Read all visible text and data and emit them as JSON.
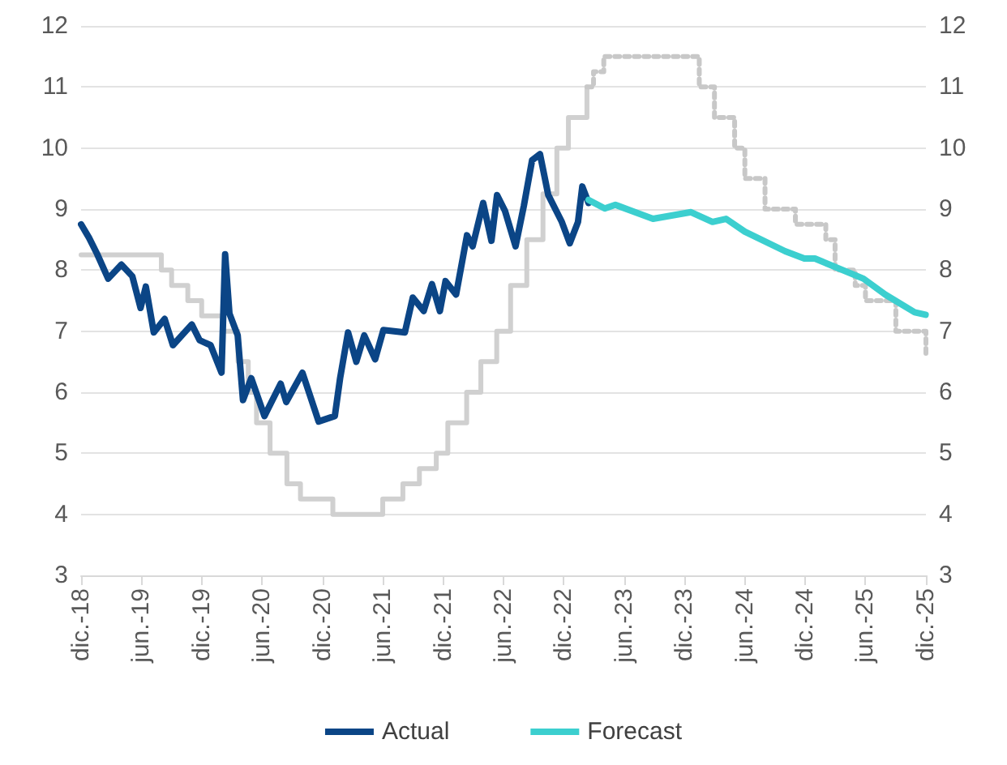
{
  "chart_data": {
    "type": "line",
    "xlim": [
      "2018-12",
      "2025-12"
    ],
    "xticks": [
      {
        "value": "2018-12",
        "label": "dic.-18"
      },
      {
        "value": "2019-06",
        "label": "jun.-19"
      },
      {
        "value": "2019-12",
        "label": "dic.-19"
      },
      {
        "value": "2020-06",
        "label": "jun.-20"
      },
      {
        "value": "2020-12",
        "label": "dic.-20"
      },
      {
        "value": "2021-06",
        "label": "jun.-21"
      },
      {
        "value": "2021-12",
        "label": "dic.-21"
      },
      {
        "value": "2022-06",
        "label": "jun.-22"
      },
      {
        "value": "2022-12",
        "label": "dic.-22"
      },
      {
        "value": "2023-06",
        "label": "jun.-23"
      },
      {
        "value": "2023-12",
        "label": "dic.-23"
      },
      {
        "value": "2024-06",
        "label": "jun.-24"
      },
      {
        "value": "2024-12",
        "label": "dic.-24"
      },
      {
        "value": "2025-06",
        "label": "jun.-25"
      },
      {
        "value": "2025-12",
        "label": "dic.-25"
      }
    ],
    "ylim": [
      3,
      12
    ],
    "yticks": [
      3,
      4,
      5,
      6,
      7,
      8,
      9,
      10,
      11,
      12
    ],
    "y2lim": [
      3,
      12
    ],
    "y2ticks": [
      3,
      4,
      5,
      6,
      7,
      8,
      9,
      10,
      11,
      12
    ],
    "grid": "y",
    "legend": "bottom",
    "marker": "none",
    "series": [
      {
        "type": "step",
        "color": "#d0d0d0",
        "line_style": "solid",
        "x": [
          "2018-12-01",
          "2019-08-01",
          "2019-09-01",
          "2019-10-20",
          "2019-12-01",
          "2020-02-01",
          "2020-03-20",
          "2020-04-20",
          "2020-05-15",
          "2020-06-25",
          "2020-08-15",
          "2020-09-25",
          "2021-01-01",
          "2021-06-01",
          "2021-08-01",
          "2021-09-20",
          "2021-11-10",
          "2021-12-15",
          "2022-02-10",
          "2022-03-25",
          "2022-05-12",
          "2022-06-23",
          "2022-08-11",
          "2022-09-29",
          "2022-11-10",
          "2022-12-15",
          "2023-02-09"
        ],
        "values": [
          8.25,
          8.0,
          7.75,
          7.5,
          7.25,
          7.0,
          6.5,
          6.0,
          5.5,
          5.0,
          4.5,
          4.25,
          4.0,
          4.25,
          4.5,
          4.75,
          5.0,
          5.5,
          6.0,
          6.5,
          7.0,
          7.75,
          8.5,
          9.25,
          10.0,
          10.5,
          11.0
        ]
      },
      {
        "type": "step",
        "color": "#c8c8c8",
        "line_style": "dotted",
        "x": [
          "2023-02-09",
          "2023-03-01",
          "2023-04-01",
          "2024-01-15",
          "2024-03-01",
          "2024-05-01",
          "2024-06-01",
          "2024-08-01",
          "2024-11-01",
          "2025-02-01",
          "2025-03-01",
          "2025-05-01",
          "2025-06-01",
          "2025-09-01",
          "2025-12-01"
        ],
        "values": [
          11.0,
          11.25,
          11.5,
          11.0,
          10.5,
          10.0,
          9.5,
          9.0,
          8.75,
          8.5,
          8.0,
          7.75,
          7.5,
          7.0,
          6.6
        ]
      },
      {
        "name": "Actual",
        "color": "#0b4586",
        "line_style": "solid",
        "x": [
          "2018-12-01",
          "2018-12-25",
          "2019-01-19",
          "2019-02-21",
          "2019-04-02",
          "2019-05-05",
          "2019-05-30",
          "2019-06-15",
          "2019-07-09",
          "2019-08-11",
          "2019-09-05",
          "2019-11-01",
          "2019-11-25",
          "2019-12-28",
          "2020-01-30",
          "2020-02-10",
          "2020-02-23",
          "2020-03-19",
          "2020-04-04",
          "2020-04-29",
          "2020-06-08",
          "2020-07-27",
          "2020-08-13",
          "2020-10-01",
          "2020-11-19",
          "2021-01-07",
          "2021-01-23",
          "2021-02-16",
          "2021-03-13",
          "2021-04-06",
          "2021-05-09",
          "2021-06-03",
          "2021-08-07",
          "2021-08-31",
          "2021-10-03",
          "2021-10-28",
          "2021-11-21",
          "2021-12-08",
          "2022-01-09",
          "2022-02-11",
          "2022-02-28",
          "2022-04-01",
          "2022-04-26",
          "2022-05-13",
          "2022-06-06",
          "2022-07-08",
          "2022-08-02",
          "2022-08-27",
          "2022-09-20",
          "2022-10-15",
          "2022-11-25",
          "2022-12-19",
          "2023-01-13",
          "2023-01-26",
          "2023-02-14"
        ],
        "values": [
          8.75,
          8.53,
          8.26,
          7.86,
          8.09,
          7.9,
          7.38,
          7.73,
          6.98,
          7.2,
          6.77,
          7.11,
          6.85,
          6.77,
          6.32,
          8.26,
          7.29,
          6.93,
          5.87,
          6.23,
          5.61,
          6.14,
          5.84,
          6.32,
          5.52,
          5.61,
          6.23,
          6.98,
          6.5,
          6.93,
          6.54,
          7.02,
          6.98,
          7.55,
          7.33,
          7.77,
          7.33,
          7.82,
          7.6,
          8.57,
          8.39,
          9.1,
          8.48,
          9.23,
          8.97,
          8.39,
          9.05,
          9.8,
          9.9,
          9.23,
          8.79,
          8.44,
          8.79,
          9.37,
          9.1
        ]
      },
      {
        "name": "Forecast",
        "color": "#3ccfcf",
        "line_style": "solid",
        "x": [
          "2023-02-14",
          "2023-04-04",
          "2023-05-06",
          "2023-08-28",
          "2023-12-21",
          "2024-02-24",
          "2024-04-05",
          "2024-06-01",
          "2024-10-01",
          "2024-11-28",
          "2024-12-30",
          "2025-05-26",
          "2025-07-31",
          "2025-10-28",
          "2025-11-30"
        ],
        "values": [
          9.15,
          9.01,
          9.07,
          8.84,
          8.95,
          8.79,
          8.84,
          8.63,
          8.31,
          8.19,
          8.19,
          7.86,
          7.6,
          7.31,
          7.27
        ]
      }
    ]
  }
}
